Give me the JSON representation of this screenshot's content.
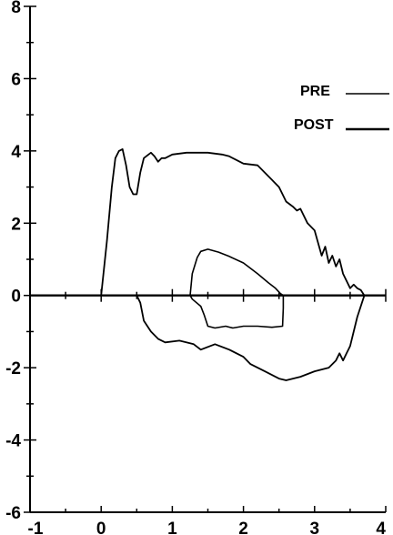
{
  "chart_data": {
    "type": "line",
    "title": "",
    "xlabel": "",
    "ylabel": "",
    "xlim": [
      -1,
      4
    ],
    "ylim": [
      -6,
      8
    ],
    "xticks": [
      -1,
      0,
      1,
      2,
      3,
      4
    ],
    "yticks": [
      -6,
      -4,
      -2,
      0,
      2,
      4,
      6,
      8
    ],
    "xtick_labels": [
      "-1",
      "0",
      "1",
      "2",
      "3",
      "4"
    ],
    "ytick_labels": [
      "-6",
      "-4",
      "-2",
      "0",
      "2",
      "4",
      "6",
      "8"
    ],
    "grid": false,
    "legend": {
      "placement": "top-right",
      "entries": [
        {
          "label": "PRE",
          "style": "thin"
        },
        {
          "label": "POST",
          "style": "thick"
        }
      ]
    },
    "series": [
      {
        "name": "PRE",
        "color": "#000000",
        "x": [
          1.25,
          1.28,
          1.35,
          1.4,
          1.5,
          1.65,
          1.8,
          2.0,
          2.2,
          2.35,
          2.45,
          2.52,
          2.56,
          2.56,
          2.55,
          2.4,
          2.2,
          2.0,
          1.85,
          1.75,
          1.6,
          1.5,
          1.45,
          1.4,
          1.28,
          1.25
        ],
        "y": [
          0.0,
          0.6,
          1.05,
          1.22,
          1.28,
          1.2,
          1.08,
          0.9,
          0.6,
          0.35,
          0.2,
          0.05,
          0.0,
          -0.35,
          -0.85,
          -0.88,
          -0.85,
          -0.85,
          -0.9,
          -0.85,
          -0.9,
          -0.85,
          -0.55,
          -0.3,
          -0.1,
          0.0
        ]
      },
      {
        "name": "POST",
        "color": "#000000",
        "x": [
          0.0,
          0.08,
          0.15,
          0.2,
          0.25,
          0.3,
          0.35,
          0.4,
          0.45,
          0.5,
          0.55,
          0.6,
          0.7,
          0.75,
          0.8,
          0.85,
          0.9,
          1.0,
          1.2,
          1.5,
          1.7,
          1.8,
          1.9,
          2.0,
          2.2,
          2.4,
          2.5,
          2.6,
          2.7,
          2.75,
          2.8,
          2.9,
          3.0,
          3.1,
          3.15,
          3.2,
          3.25,
          3.3,
          3.35,
          3.4,
          3.45,
          3.5,
          3.55,
          3.6,
          3.65,
          3.7,
          3.6,
          3.55,
          3.5,
          3.4,
          3.35,
          3.3,
          3.2,
          3.0,
          2.8,
          2.6,
          2.5,
          2.3,
          2.1,
          2.0,
          1.8,
          1.6,
          1.4,
          1.3,
          1.1,
          0.9,
          0.8,
          0.7,
          0.6,
          0.55,
          0.5
        ],
        "y": [
          0.0,
          1.5,
          3.0,
          3.8,
          4.0,
          4.05,
          3.6,
          3.0,
          2.8,
          2.8,
          3.4,
          3.8,
          3.95,
          3.85,
          3.7,
          3.8,
          3.8,
          3.9,
          3.95,
          3.95,
          3.9,
          3.85,
          3.75,
          3.65,
          3.6,
          3.2,
          3.0,
          2.6,
          2.45,
          2.35,
          2.4,
          2.0,
          1.8,
          1.1,
          1.35,
          0.9,
          1.1,
          0.8,
          1.0,
          0.6,
          0.4,
          0.2,
          0.3,
          0.2,
          0.15,
          0.0,
          -0.6,
          -1.0,
          -1.4,
          -1.8,
          -1.6,
          -1.8,
          -2.0,
          -2.1,
          -2.25,
          -2.35,
          -2.3,
          -2.1,
          -1.9,
          -1.7,
          -1.5,
          -1.35,
          -1.5,
          -1.35,
          -1.25,
          -1.3,
          -1.2,
          -1.0,
          -0.7,
          -0.2,
          0.0
        ]
      }
    ]
  }
}
